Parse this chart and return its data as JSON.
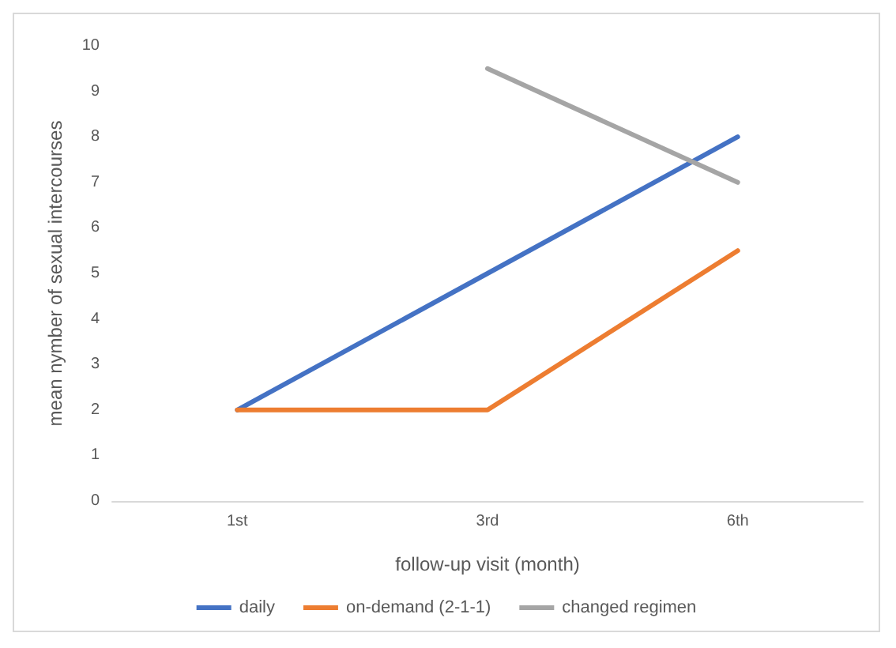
{
  "chart_data": {
    "type": "line",
    "xlabel": "follow-up visit (month)",
    "ylabel": "mean nymber of sexual intercourses",
    "categories": [
      "1st",
      "3rd",
      "6th"
    ],
    "series": [
      {
        "name": "daily",
        "color": "#4472c4",
        "values": [
          2,
          5,
          8
        ]
      },
      {
        "name": "on-demand (2-1-1)",
        "color": "#ed7d31",
        "values": [
          2,
          2,
          5.5
        ]
      },
      {
        "name": "changed regimen",
        "color": "#a5a5a5",
        "values": [
          null,
          9.5,
          7
        ]
      }
    ],
    "ylim": [
      0,
      10
    ],
    "yticks": [
      0,
      1,
      2,
      3,
      4,
      5,
      6,
      7,
      8,
      9,
      10
    ],
    "grid": false,
    "legend": "bottom",
    "marker": "none",
    "line_style": "solid"
  }
}
